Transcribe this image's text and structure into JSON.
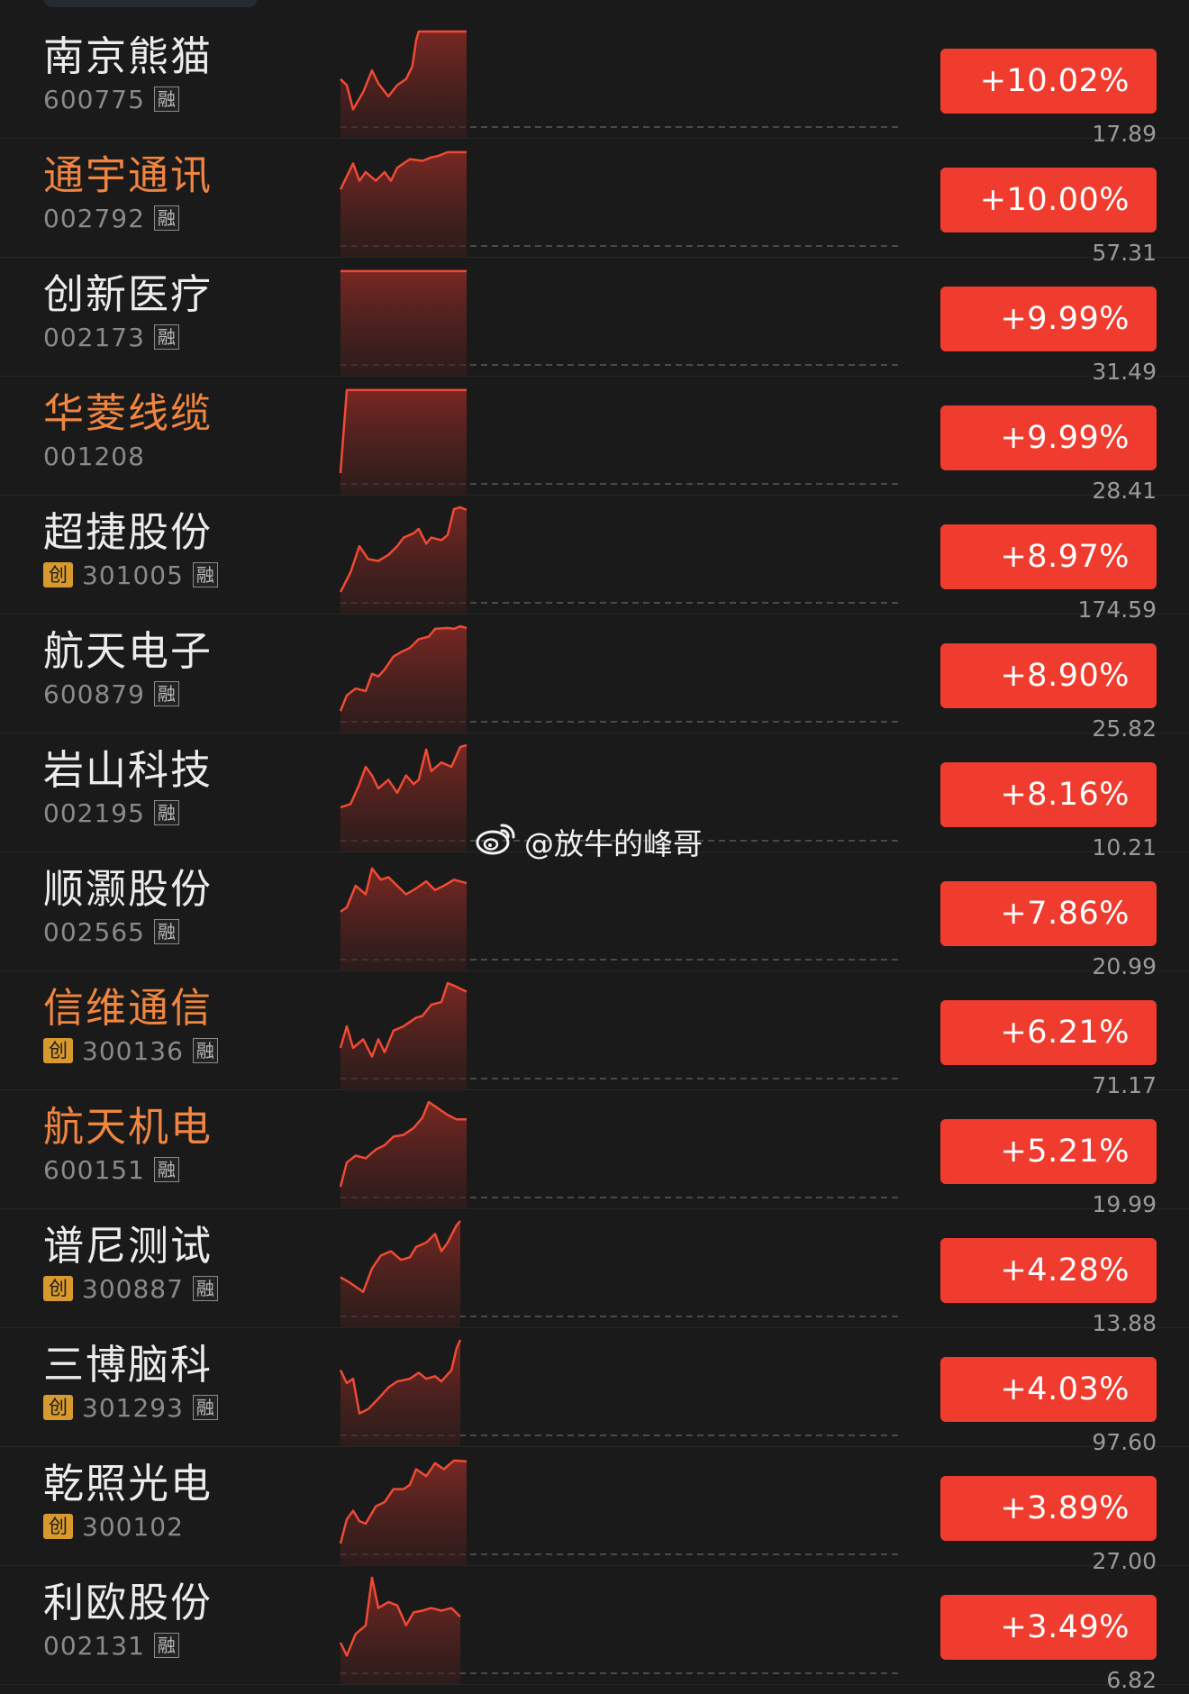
{
  "watermark": {
    "text": "@放牛的峰哥"
  },
  "colors": {
    "up": "#f03c2e",
    "hot_name": "#ef8540",
    "spark_line": "#f04a34"
  },
  "stocks": [
    {
      "name": "南京熊猫",
      "code": "600775",
      "chuang": false,
      "rong": true,
      "hot": false,
      "pct": "+10.02%",
      "price": "17.89",
      "spark": [
        [
          0,
          0.55
        ],
        [
          0.05,
          0.62
        ],
        [
          0.1,
          0.9
        ],
        [
          0.18,
          0.7
        ],
        [
          0.25,
          0.45
        ],
        [
          0.3,
          0.6
        ],
        [
          0.38,
          0.75
        ],
        [
          0.45,
          0.62
        ],
        [
          0.52,
          0.55
        ],
        [
          0.57,
          0.4
        ],
        [
          0.6,
          0.1
        ],
        [
          0.62,
          0.0
        ],
        [
          1,
          0.0
        ]
      ]
    },
    {
      "name": "通宇通讯",
      "code": "002792",
      "chuang": false,
      "rong": true,
      "hot": true,
      "pct": "+10.00%",
      "price": "57.31",
      "spark": [
        [
          0,
          0.45
        ],
        [
          0.05,
          0.3
        ],
        [
          0.1,
          0.15
        ],
        [
          0.15,
          0.35
        ],
        [
          0.2,
          0.25
        ],
        [
          0.28,
          0.35
        ],
        [
          0.35,
          0.25
        ],
        [
          0.4,
          0.35
        ],
        [
          0.45,
          0.2
        ],
        [
          0.55,
          0.1
        ],
        [
          0.65,
          0.12
        ],
        [
          0.72,
          0.08
        ],
        [
          0.78,
          0.06
        ],
        [
          0.85,
          0.02
        ],
        [
          1,
          0.02
        ]
      ]
    },
    {
      "name": "创新医疗",
      "code": "002173",
      "chuang": false,
      "rong": true,
      "hot": false,
      "pct": "+9.99%",
      "price": "31.49",
      "spark": [
        [
          0,
          0.02
        ],
        [
          1,
          0.02
        ]
      ]
    },
    {
      "name": "华菱线缆",
      "code": "001208",
      "chuang": false,
      "rong": false,
      "hot": true,
      "pct": "+9.99%",
      "price": "28.41",
      "spark": [
        [
          0,
          0.98
        ],
        [
          0.05,
          0.02
        ],
        [
          1,
          0.02
        ]
      ]
    },
    {
      "name": "超捷股份",
      "code": "301005",
      "chuang": true,
      "rong": true,
      "hot": false,
      "pct": "+8.97%",
      "price": "174.59",
      "spark": [
        [
          0,
          0.98
        ],
        [
          0.08,
          0.75
        ],
        [
          0.15,
          0.45
        ],
        [
          0.22,
          0.6
        ],
        [
          0.3,
          0.62
        ],
        [
          0.38,
          0.55
        ],
        [
          0.45,
          0.45
        ],
        [
          0.5,
          0.35
        ],
        [
          0.58,
          0.3
        ],
        [
          0.62,
          0.25
        ],
        [
          0.68,
          0.42
        ],
        [
          0.72,
          0.35
        ],
        [
          0.8,
          0.38
        ],
        [
          0.85,
          0.32
        ],
        [
          0.9,
          0.02
        ],
        [
          0.95,
          0.0
        ],
        [
          1,
          0.03
        ]
      ]
    },
    {
      "name": "航天电子",
      "code": "600879",
      "chuang": false,
      "rong": true,
      "hot": false,
      "pct": "+8.90%",
      "price": "25.82",
      "spark": [
        [
          0,
          0.98
        ],
        [
          0.05,
          0.8
        ],
        [
          0.12,
          0.72
        ],
        [
          0.2,
          0.75
        ],
        [
          0.25,
          0.55
        ],
        [
          0.3,
          0.58
        ],
        [
          0.35,
          0.5
        ],
        [
          0.42,
          0.35
        ],
        [
          0.48,
          0.3
        ],
        [
          0.55,
          0.25
        ],
        [
          0.62,
          0.15
        ],
        [
          0.7,
          0.12
        ],
        [
          0.75,
          0.03
        ],
        [
          0.85,
          0.02
        ],
        [
          0.9,
          0.03
        ],
        [
          0.95,
          0.0
        ],
        [
          1,
          0.02
        ]
      ]
    },
    {
      "name": "岩山科技",
      "code": "002195",
      "chuang": false,
      "rong": true,
      "hot": false,
      "pct": "+8.16%",
      "price": "10.21",
      "spark": [
        [
          0,
          0.72
        ],
        [
          0.08,
          0.68
        ],
        [
          0.15,
          0.45
        ],
        [
          0.2,
          0.25
        ],
        [
          0.25,
          0.35
        ],
        [
          0.3,
          0.5
        ],
        [
          0.38,
          0.4
        ],
        [
          0.45,
          0.55
        ],
        [
          0.52,
          0.35
        ],
        [
          0.58,
          0.45
        ],
        [
          0.62,
          0.4
        ],
        [
          0.68,
          0.05
        ],
        [
          0.72,
          0.3
        ],
        [
          0.8,
          0.2
        ],
        [
          0.88,
          0.25
        ],
        [
          0.95,
          0.02
        ],
        [
          1,
          0.0
        ]
      ]
    },
    {
      "name": "顺灏股份",
      "code": "002565",
      "chuang": false,
      "rong": true,
      "hot": false,
      "pct": "+7.86%",
      "price": "20.99",
      "spark": [
        [
          0,
          0.55
        ],
        [
          0.05,
          0.5
        ],
        [
          0.12,
          0.25
        ],
        [
          0.2,
          0.35
        ],
        [
          0.25,
          0.05
        ],
        [
          0.32,
          0.18
        ],
        [
          0.38,
          0.15
        ],
        [
          0.45,
          0.25
        ],
        [
          0.52,
          0.35
        ],
        [
          0.6,
          0.28
        ],
        [
          0.68,
          0.2
        ],
        [
          0.75,
          0.3
        ],
        [
          0.82,
          0.25
        ],
        [
          0.9,
          0.18
        ],
        [
          1,
          0.22
        ]
      ]
    },
    {
      "name": "信维通信",
      "code": "300136",
      "chuang": true,
      "rong": true,
      "hot": true,
      "pct": "+6.21%",
      "price": "71.17",
      "spark": [
        [
          0,
          0.75
        ],
        [
          0.05,
          0.5
        ],
        [
          0.1,
          0.75
        ],
        [
          0.18,
          0.65
        ],
        [
          0.25,
          0.85
        ],
        [
          0.3,
          0.65
        ],
        [
          0.35,
          0.8
        ],
        [
          0.42,
          0.55
        ],
        [
          0.5,
          0.5
        ],
        [
          0.55,
          0.45
        ],
        [
          0.6,
          0.4
        ],
        [
          0.65,
          0.38
        ],
        [
          0.72,
          0.25
        ],
        [
          0.8,
          0.22
        ],
        [
          0.85,
          0.0
        ],
        [
          0.9,
          0.03
        ],
        [
          1,
          0.1
        ]
      ]
    },
    {
      "name": "航天机电",
      "code": "600151",
      "chuang": false,
      "rong": true,
      "hot": true,
      "pct": "+5.21%",
      "price": "19.99",
      "spark": [
        [
          0,
          0.98
        ],
        [
          0.05,
          0.7
        ],
        [
          0.12,
          0.62
        ],
        [
          0.2,
          0.65
        ],
        [
          0.28,
          0.55
        ],
        [
          0.35,
          0.5
        ],
        [
          0.42,
          0.4
        ],
        [
          0.5,
          0.38
        ],
        [
          0.58,
          0.3
        ],
        [
          0.65,
          0.18
        ],
        [
          0.7,
          0.0
        ],
        [
          0.78,
          0.08
        ],
        [
          0.85,
          0.15
        ],
        [
          0.92,
          0.2
        ],
        [
          1,
          0.2
        ]
      ]
    },
    {
      "name": "谱尼测试",
      "code": "300887",
      "chuang": true,
      "rong": true,
      "hot": false,
      "pct": "+4.28%",
      "price": "13.88",
      "spark": [
        [
          0,
          0.65
        ],
        [
          0.08,
          0.72
        ],
        [
          0.18,
          0.82
        ],
        [
          0.25,
          0.55
        ],
        [
          0.32,
          0.4
        ],
        [
          0.4,
          0.35
        ],
        [
          0.48,
          0.45
        ],
        [
          0.55,
          0.42
        ],
        [
          0.6,
          0.3
        ],
        [
          0.68,
          0.25
        ],
        [
          0.75,
          0.15
        ],
        [
          0.8,
          0.35
        ],
        [
          0.85,
          0.25
        ],
        [
          0.92,
          0.05
        ],
        [
          0.95,
          0.0
        ]
      ]
    },
    {
      "name": "三博脑科",
      "code": "301293",
      "chuang": true,
      "rong": true,
      "hot": false,
      "pct": "+4.03%",
      "price": "97.60",
      "spark": [
        [
          0,
          0.35
        ],
        [
          0.05,
          0.5
        ],
        [
          0.1,
          0.45
        ],
        [
          0.15,
          0.85
        ],
        [
          0.22,
          0.8
        ],
        [
          0.3,
          0.68
        ],
        [
          0.38,
          0.55
        ],
        [
          0.45,
          0.48
        ],
        [
          0.55,
          0.45
        ],
        [
          0.62,
          0.38
        ],
        [
          0.68,
          0.45
        ],
        [
          0.75,
          0.42
        ],
        [
          0.8,
          0.48
        ],
        [
          0.88,
          0.35
        ],
        [
          0.92,
          0.1
        ],
        [
          0.95,
          0.0
        ]
      ]
    },
    {
      "name": "乾照光电",
      "code": "300102",
      "chuang": true,
      "rong": false,
      "hot": false,
      "pct": "+3.89%",
      "price": "27.00",
      "spark": [
        [
          0,
          0.98
        ],
        [
          0.05,
          0.7
        ],
        [
          0.1,
          0.6
        ],
        [
          0.15,
          0.72
        ],
        [
          0.2,
          0.75
        ],
        [
          0.28,
          0.55
        ],
        [
          0.35,
          0.5
        ],
        [
          0.42,
          0.35
        ],
        [
          0.5,
          0.35
        ],
        [
          0.55,
          0.3
        ],
        [
          0.6,
          0.12
        ],
        [
          0.68,
          0.2
        ],
        [
          0.75,
          0.05
        ],
        [
          0.82,
          0.12
        ],
        [
          0.9,
          0.02
        ],
        [
          1,
          0.03
        ]
      ]
    },
    {
      "name": "利欧股份",
      "code": "002131",
      "chuang": false,
      "rong": true,
      "hot": false,
      "pct": "+3.49%",
      "price": "6.82",
      "spark": [
        [
          0,
          0.75
        ],
        [
          0.05,
          0.9
        ],
        [
          0.12,
          0.65
        ],
        [
          0.2,
          0.55
        ],
        [
          0.25,
          0.0
        ],
        [
          0.3,
          0.35
        ],
        [
          0.38,
          0.28
        ],
        [
          0.45,
          0.32
        ],
        [
          0.52,
          0.55
        ],
        [
          0.58,
          0.4
        ],
        [
          0.65,
          0.38
        ],
        [
          0.72,
          0.35
        ],
        [
          0.8,
          0.38
        ],
        [
          0.88,
          0.35
        ],
        [
          0.95,
          0.45
        ]
      ]
    }
  ]
}
